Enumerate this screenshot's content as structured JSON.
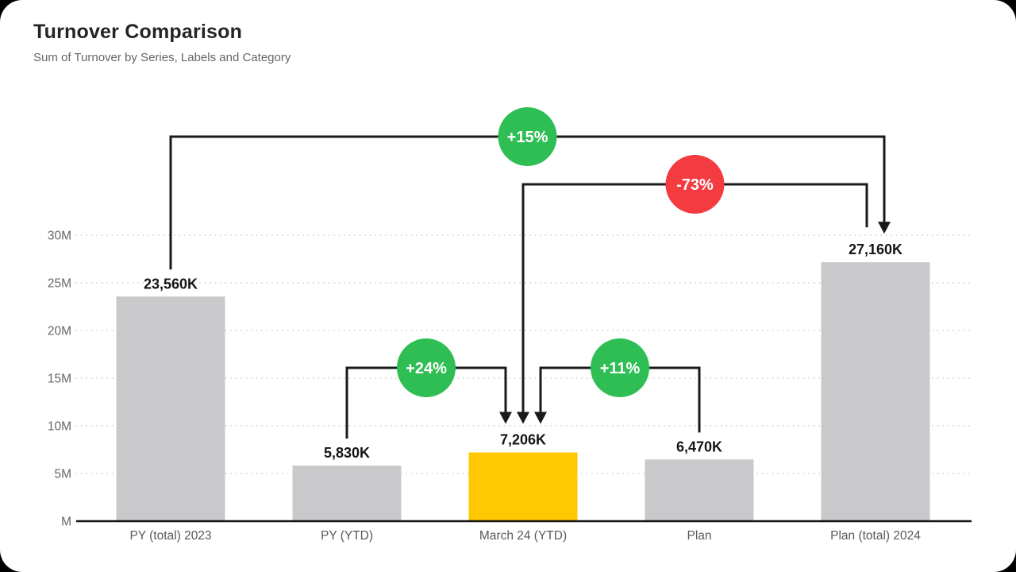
{
  "header": {
    "title": "Turnover Comparison",
    "subtitle": "Sum of Turnover by Series, Labels and Category"
  },
  "chart_data": {
    "type": "bar",
    "title": "Turnover Comparison",
    "subtitle": "Sum of Turnover by Series, Labels and Category",
    "categories": [
      "PY (total) 2023",
      "PY (YTD)",
      "March 24 (YTD)",
      "Plan",
      "Plan (total) 2024"
    ],
    "values_millions": [
      23.56,
      5.83,
      7.206,
      6.47,
      27.16
    ],
    "value_labels": [
      "23,560K",
      "5,830K",
      "7,206K",
      "6,470K",
      "27,160K"
    ],
    "bar_colors": [
      "#C9C9CC",
      "#C9C9CC",
      "#FFC800",
      "#C9C9CC",
      "#C9C9CC"
    ],
    "default_bar_color": "#C9C9CC",
    "highlight_color": "#FFC800",
    "ytick_labels": [
      "M",
      "5M",
      "10M",
      "15M",
      "20M",
      "25M",
      "30M"
    ],
    "ytick_values": [
      0,
      5,
      10,
      15,
      20,
      25,
      30
    ],
    "ylim": [
      0,
      32
    ],
    "grid": true,
    "legend": "none",
    "colors": {
      "positive_variance": "#2FBE54",
      "negative_variance": "#F43B40",
      "connector": "#1a1a1a"
    },
    "variances": [
      {
        "label": "+15%",
        "direction": "increase",
        "color": "#2FBE54",
        "from": "PY (total) 2023",
        "to": "Plan (total) 2024",
        "from_index": 0,
        "to_index": 4
      },
      {
        "label": "-73%",
        "direction": "decrease",
        "color": "#F43B40",
        "from": "Plan (total) 2024",
        "to": "March 24 (YTD)",
        "from_index": 4,
        "to_index": 2
      },
      {
        "label": "+24%",
        "direction": "increase",
        "color": "#2FBE54",
        "from": "PY (YTD)",
        "to": "March 24 (YTD)",
        "from_index": 1,
        "to_index": 2
      },
      {
        "label": "+11%",
        "direction": "increase",
        "color": "#2FBE54",
        "from": "Plan",
        "to": "March 24 (YTD)",
        "from_index": 3,
        "to_index": 2
      }
    ]
  }
}
